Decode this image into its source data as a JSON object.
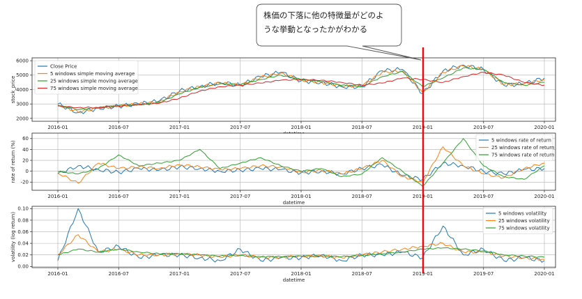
{
  "annotation": {
    "line1": "株価の下落に他の特徴量がどのよ",
    "line2": "うな挙動となったかがわかる"
  },
  "marker_date": "2019-01",
  "colors": {
    "blue": "#1f77b4",
    "orange": "#ff7f0e",
    "green": "#2ca02c",
    "red": "#d62728",
    "marker": "#ff0000"
  },
  "chart_data": [
    {
      "type": "line",
      "xlabel": "datetime",
      "ylabel": "stock_price",
      "x_ticks": [
        "2016-01",
        "2016-07",
        "2017-01",
        "2017-07",
        "2018-01",
        "2018-07",
        "2019-01",
        "2019-07",
        "2020-01"
      ],
      "y_ticks": [
        2000,
        3000,
        4000,
        5000,
        6000
      ],
      "ylim": [
        1800,
        6200
      ],
      "legend_position": "top-left",
      "grid": true,
      "x": [
        "2016-01",
        "2016-03",
        "2016-05",
        "2016-07",
        "2016-09",
        "2016-11",
        "2017-01",
        "2017-03",
        "2017-05",
        "2017-07",
        "2017-09",
        "2017-11",
        "2018-01",
        "2018-03",
        "2018-05",
        "2018-07",
        "2018-09",
        "2018-11",
        "2019-01",
        "2019-03",
        "2019-05",
        "2019-07",
        "2019-09",
        "2019-11",
        "2020-01"
      ],
      "series": [
        {
          "name": "Close Price",
          "color": "blue",
          "values": [
            3000,
            2400,
            2700,
            2850,
            3000,
            3200,
            3900,
            4200,
            4500,
            4300,
            4900,
            5200,
            4600,
            4500,
            4200,
            4200,
            5300,
            5400,
            3700,
            5300,
            5700,
            5400,
            4300,
            4400,
            4800
          ]
        },
        {
          "name": "5 windows simple moving average",
          "color": "orange",
          "values": [
            2950,
            2450,
            2700,
            2850,
            3000,
            3150,
            3850,
            4200,
            4450,
            4300,
            4850,
            5150,
            4650,
            4500,
            4250,
            4250,
            5200,
            5300,
            3800,
            5200,
            5650,
            5400,
            4350,
            4400,
            4700
          ]
        },
        {
          "name": "25 windows simple moving average",
          "color": "green",
          "values": [
            2900,
            2600,
            2750,
            2900,
            2950,
            3100,
            3700,
            4150,
            4400,
            4350,
            4700,
            5000,
            4700,
            4550,
            4300,
            4200,
            4900,
            5250,
            4200,
            4800,
            5500,
            5400,
            4500,
            4300,
            4500
          ]
        },
        {
          "name": "75 windows simple moving average",
          "color": "red",
          "values": [
            2850,
            2750,
            2750,
            2850,
            2950,
            3050,
            3400,
            3900,
            4200,
            4300,
            4450,
            4650,
            4700,
            4650,
            4500,
            4300,
            4450,
            4800,
            4700,
            4500,
            4900,
            5200,
            5000,
            4500,
            4300
          ]
        }
      ]
    },
    {
      "type": "line",
      "xlabel": "datetime",
      "ylabel": "rate of return (%)",
      "x_ticks": [
        "2016-01",
        "2016-07",
        "2017-01",
        "2017-07",
        "2018-01",
        "2018-07",
        "2019-01",
        "2019-07",
        "2020-01"
      ],
      "y_ticks": [
        -20,
        0,
        20,
        40,
        60
      ],
      "ylim": [
        -35,
        70
      ],
      "legend_position": "top-right",
      "grid": true,
      "x": [
        "2016-01",
        "2016-03",
        "2016-05",
        "2016-07",
        "2016-09",
        "2016-11",
        "2017-01",
        "2017-03",
        "2017-05",
        "2017-07",
        "2017-09",
        "2017-11",
        "2018-01",
        "2018-03",
        "2018-05",
        "2018-07",
        "2018-09",
        "2018-11",
        "2019-01",
        "2019-03",
        "2019-05",
        "2019-07",
        "2019-09",
        "2019-11",
        "2020-01"
      ],
      "series": [
        {
          "name": "5 windows rate of return",
          "color": "blue",
          "values": [
            -5,
            10,
            3,
            -2,
            5,
            2,
            8,
            5,
            0,
            2,
            5,
            3,
            -3,
            0,
            -5,
            5,
            12,
            -8,
            -15,
            15,
            10,
            0,
            -5,
            3,
            5
          ]
        },
        {
          "name": "25 windows rate of return",
          "color": "orange",
          "values": [
            -3,
            -22,
            15,
            5,
            8,
            5,
            12,
            8,
            3,
            5,
            10,
            8,
            -2,
            2,
            -5,
            5,
            20,
            -10,
            -20,
            45,
            10,
            -5,
            -12,
            5,
            15
          ]
        },
        {
          "name": "75 windows rate of return",
          "color": "green",
          "values": [
            0,
            -5,
            5,
            30,
            10,
            15,
            20,
            40,
            5,
            15,
            25,
            10,
            0,
            5,
            -10,
            -5,
            25,
            0,
            -28,
            15,
            60,
            10,
            -10,
            -15,
            10
          ]
        }
      ]
    },
    {
      "type": "line",
      "xlabel": "datetime",
      "ylabel": "volatility (log return)",
      "x_ticks": [
        "2016-01",
        "2016-07",
        "2017-01",
        "2017-07",
        "2018-01",
        "2018-07",
        "2019-01",
        "2019-07",
        "2020-01"
      ],
      "y_ticks": [
        0.0,
        0.02,
        0.04,
        0.06,
        0.08,
        0.1
      ],
      "ylim": [
        -0.002,
        0.104
      ],
      "legend_position": "top-right",
      "grid": true,
      "x": [
        "2016-01",
        "2016-03",
        "2016-05",
        "2016-07",
        "2016-09",
        "2016-11",
        "2017-01",
        "2017-03",
        "2017-05",
        "2017-07",
        "2017-09",
        "2017-11",
        "2018-01",
        "2018-03",
        "2018-05",
        "2018-07",
        "2018-09",
        "2018-11",
        "2019-01",
        "2019-03",
        "2019-05",
        "2019-07",
        "2019-09",
        "2019-11",
        "2020-01"
      ],
      "series": [
        {
          "name": "5 windows volatility",
          "color": "blue",
          "values": [
            0.01,
            0.1,
            0.025,
            0.035,
            0.015,
            0.02,
            0.02,
            0.015,
            0.01,
            0.03,
            0.01,
            0.015,
            0.015,
            0.02,
            0.01,
            0.02,
            0.02,
            0.025,
            0.015,
            0.07,
            0.02,
            0.03,
            0.01,
            0.015,
            0.01
          ]
        },
        {
          "name": "25 windows volatility",
          "color": "orange",
          "values": [
            0.02,
            0.055,
            0.025,
            0.03,
            0.02,
            0.02,
            0.022,
            0.02,
            0.016,
            0.02,
            0.016,
            0.016,
            0.018,
            0.018,
            0.015,
            0.02,
            0.025,
            0.03,
            0.035,
            0.04,
            0.025,
            0.025,
            0.018,
            0.015,
            0.012
          ]
        },
        {
          "name": "75 windows volatility",
          "color": "green",
          "values": [
            0.02,
            0.03,
            0.025,
            0.03,
            0.025,
            0.022,
            0.022,
            0.02,
            0.018,
            0.019,
            0.017,
            0.017,
            0.018,
            0.018,
            0.017,
            0.019,
            0.022,
            0.025,
            0.03,
            0.032,
            0.03,
            0.027,
            0.02,
            0.018,
            0.016
          ]
        }
      ]
    }
  ]
}
